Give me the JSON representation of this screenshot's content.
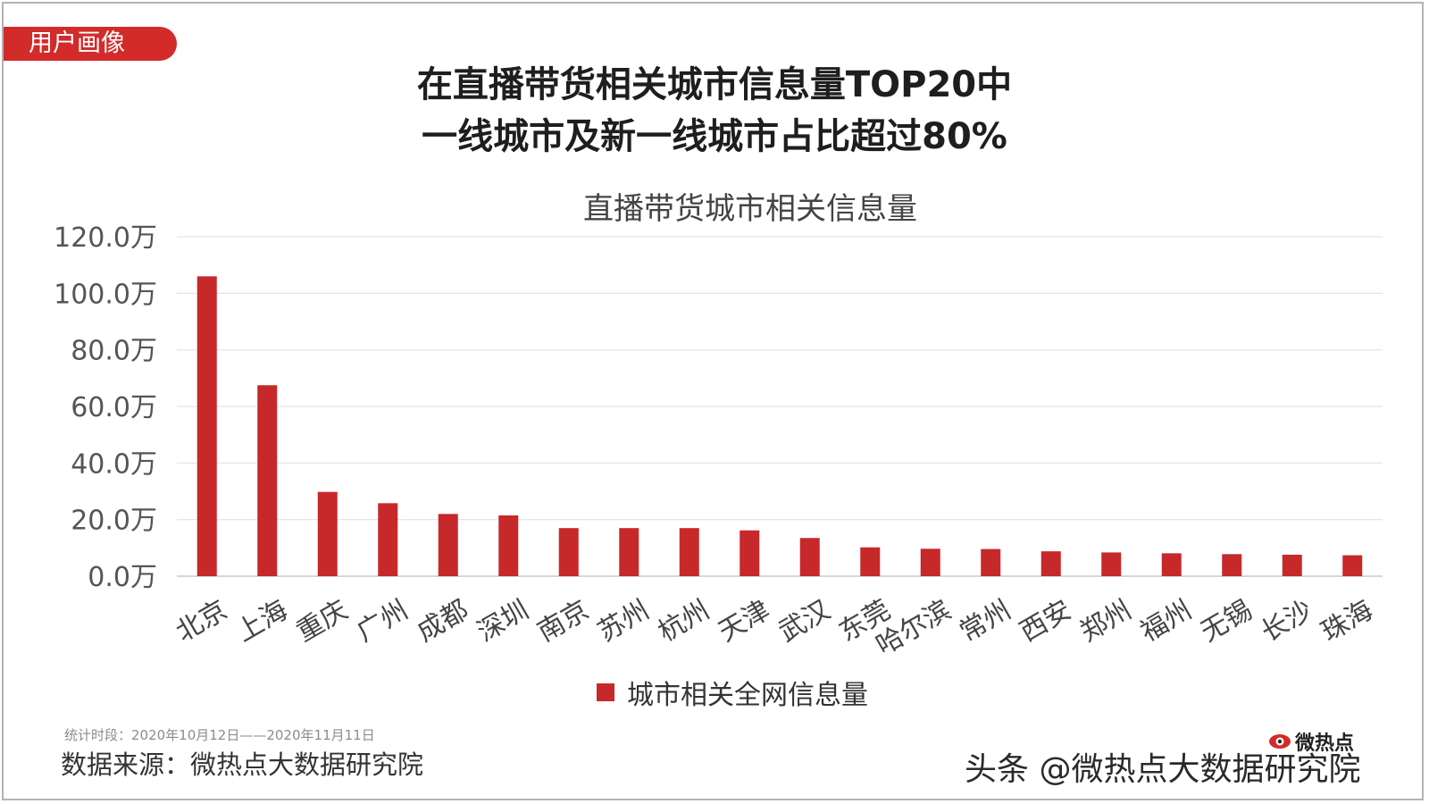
{
  "tag": "用户画像",
  "headline": {
    "line1": "在直播带货相关城市信息量TOP20中",
    "line2": "一线城市及新一线城市占比超过80%"
  },
  "chart_data": {
    "type": "bar",
    "title": "直播带货城市相关信息量",
    "xlabel": "",
    "ylabel": "",
    "ylim": [
      0,
      120
    ],
    "y_ticks": [
      "0.0万",
      "20.0万",
      "40.0万",
      "60.0万",
      "80.0万",
      "100.0万",
      "120.0万"
    ],
    "y_tick_values": [
      0,
      20,
      40,
      60,
      80,
      100,
      120
    ],
    "grid": true,
    "legend_position": "bottom",
    "categories": [
      "北京",
      "上海",
      "重庆",
      "广州",
      "成都",
      "深圳",
      "南京",
      "苏州",
      "杭州",
      "天津",
      "武汉",
      "东莞",
      "哈尔滨",
      "常州",
      "西安",
      "郑州",
      "福州",
      "无锡",
      "长沙",
      "珠海"
    ],
    "series": [
      {
        "name": "城市相关全网信息量",
        "color": "#c7282a",
        "values": [
          106,
          67.5,
          29.8,
          25.8,
          22.0,
          21.5,
          17.0,
          17.0,
          17.0,
          16.2,
          13.5,
          10.2,
          9.7,
          9.6,
          8.8,
          8.4,
          8.1,
          7.8,
          7.6,
          7.4
        ]
      }
    ]
  },
  "footer": {
    "stat_period": "统计时段：2020年10月12日——2020年11月11日",
    "source": "数据来源：微热点大数据研究院",
    "logo_text": "微热点",
    "watermark": "头条 @微热点大数据研究院"
  }
}
